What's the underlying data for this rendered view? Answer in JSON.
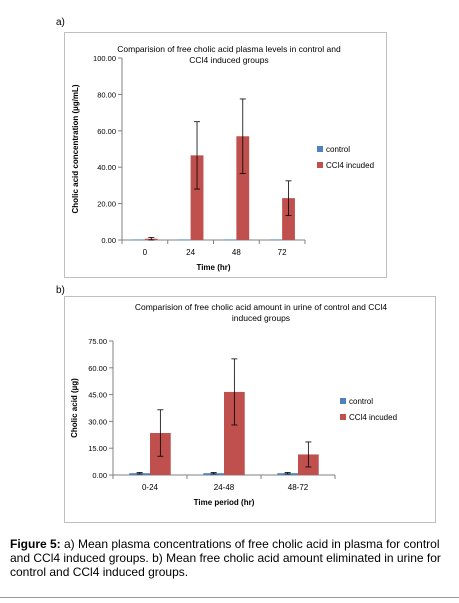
{
  "chart_data": [
    {
      "panel": "a)",
      "type": "bar",
      "title": "Comparision of free cholic acid plasma levels in control and CCl4 induced groups",
      "title_lines": [
        "Comparision of free cholic acid plasma levels in control and",
        "CCl4 induced groups"
      ],
      "xlabel": "Time (hr)",
      "ylabel": "Cholic acid concentration (µg/mL)",
      "categories": [
        "0",
        "24",
        "48",
        "72"
      ],
      "ylim": [
        0,
        100
      ],
      "yticks": [
        "0.00",
        "20.00",
        "40.00",
        "60.00",
        "80.00",
        "100.00"
      ],
      "legend_position": "right",
      "grid": false,
      "series": [
        {
          "name": "control",
          "color": "#4f81bd",
          "values": [
            0.3,
            0.3,
            0.3,
            0.3
          ],
          "errors": [
            0,
            0,
            0,
            0
          ]
        },
        {
          "name": "CCl4 incuded",
          "color": "#c0504d",
          "values": [
            0.7,
            46.5,
            57,
            23
          ],
          "errors": [
            0.7,
            18.5,
            20.5,
            9.5
          ]
        }
      ]
    },
    {
      "panel": "b)",
      "type": "bar",
      "title": "Comparision of free cholic acid amount in urine of control and CCl4 induced groups",
      "title_lines": [
        "Comparision of free cholic acid amount in urine of control and CCl4",
        "induced groups"
      ],
      "xlabel": "Time period (hr)",
      "ylabel": "Cholic acid (µg)",
      "categories": [
        "0-24",
        "24-48",
        "48-72"
      ],
      "ylim": [
        0,
        75
      ],
      "yticks": [
        "0.00",
        "15.00",
        "30.00",
        "45.00",
        "60.00",
        "75.00"
      ],
      "legend_position": "right",
      "grid": false,
      "series": [
        {
          "name": "control",
          "color": "#4f81bd",
          "values": [
            1.0,
            1.0,
            1.0
          ],
          "errors": [
            0.4,
            0.4,
            0.4
          ]
        },
        {
          "name": "CCl4 incuded",
          "color": "#c0504d",
          "values": [
            23.5,
            46.5,
            11.5
          ],
          "errors": [
            13,
            18.5,
            7
          ]
        }
      ]
    }
  ],
  "caption": {
    "label": "Figure 5:",
    "text": " a) Mean plasma concentrations of free cholic acid in plasma for control and CCl4 induced groups. b) Mean free cholic acid amount eliminated in urine for control and CCl4 induced groups."
  }
}
